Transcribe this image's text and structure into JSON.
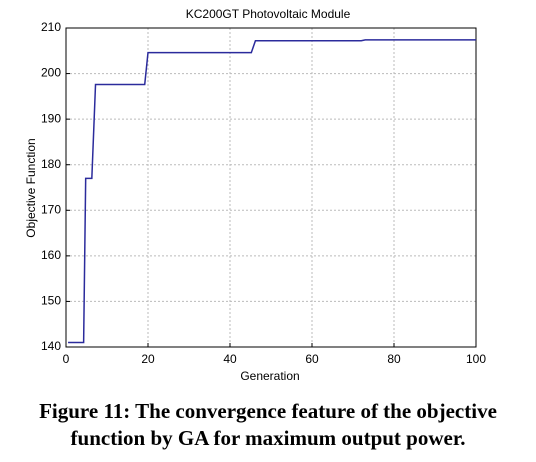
{
  "chart_data": {
    "type": "line",
    "title": "KC200GT Photovoltaic Module",
    "xlabel": "Generation",
    "ylabel": "Objective Function",
    "x": [
      0.5,
      4.3,
      4.8,
      6.3,
      7.2,
      19.2,
      20,
      45.2,
      46.2,
      72,
      73,
      100
    ],
    "series": [
      {
        "name": "Objective Function",
        "color": "#2b2b9c",
        "values": [
          141,
          141,
          177,
          177,
          197.6,
          197.6,
          204.6,
          204.6,
          207.2,
          207.2,
          207.4,
          207.4
        ]
      }
    ],
    "xlim": [
      0,
      100
    ],
    "xticks": [
      0,
      20,
      40,
      60,
      80,
      100
    ],
    "ylim": [
      140,
      210
    ],
    "yticks": [
      140,
      150,
      160,
      170,
      180,
      190,
      200,
      210
    ],
    "grid": true,
    "caption": [
      "Figure 11: The convergence feature of the objective",
      "function by GA for maximum output power."
    ]
  }
}
